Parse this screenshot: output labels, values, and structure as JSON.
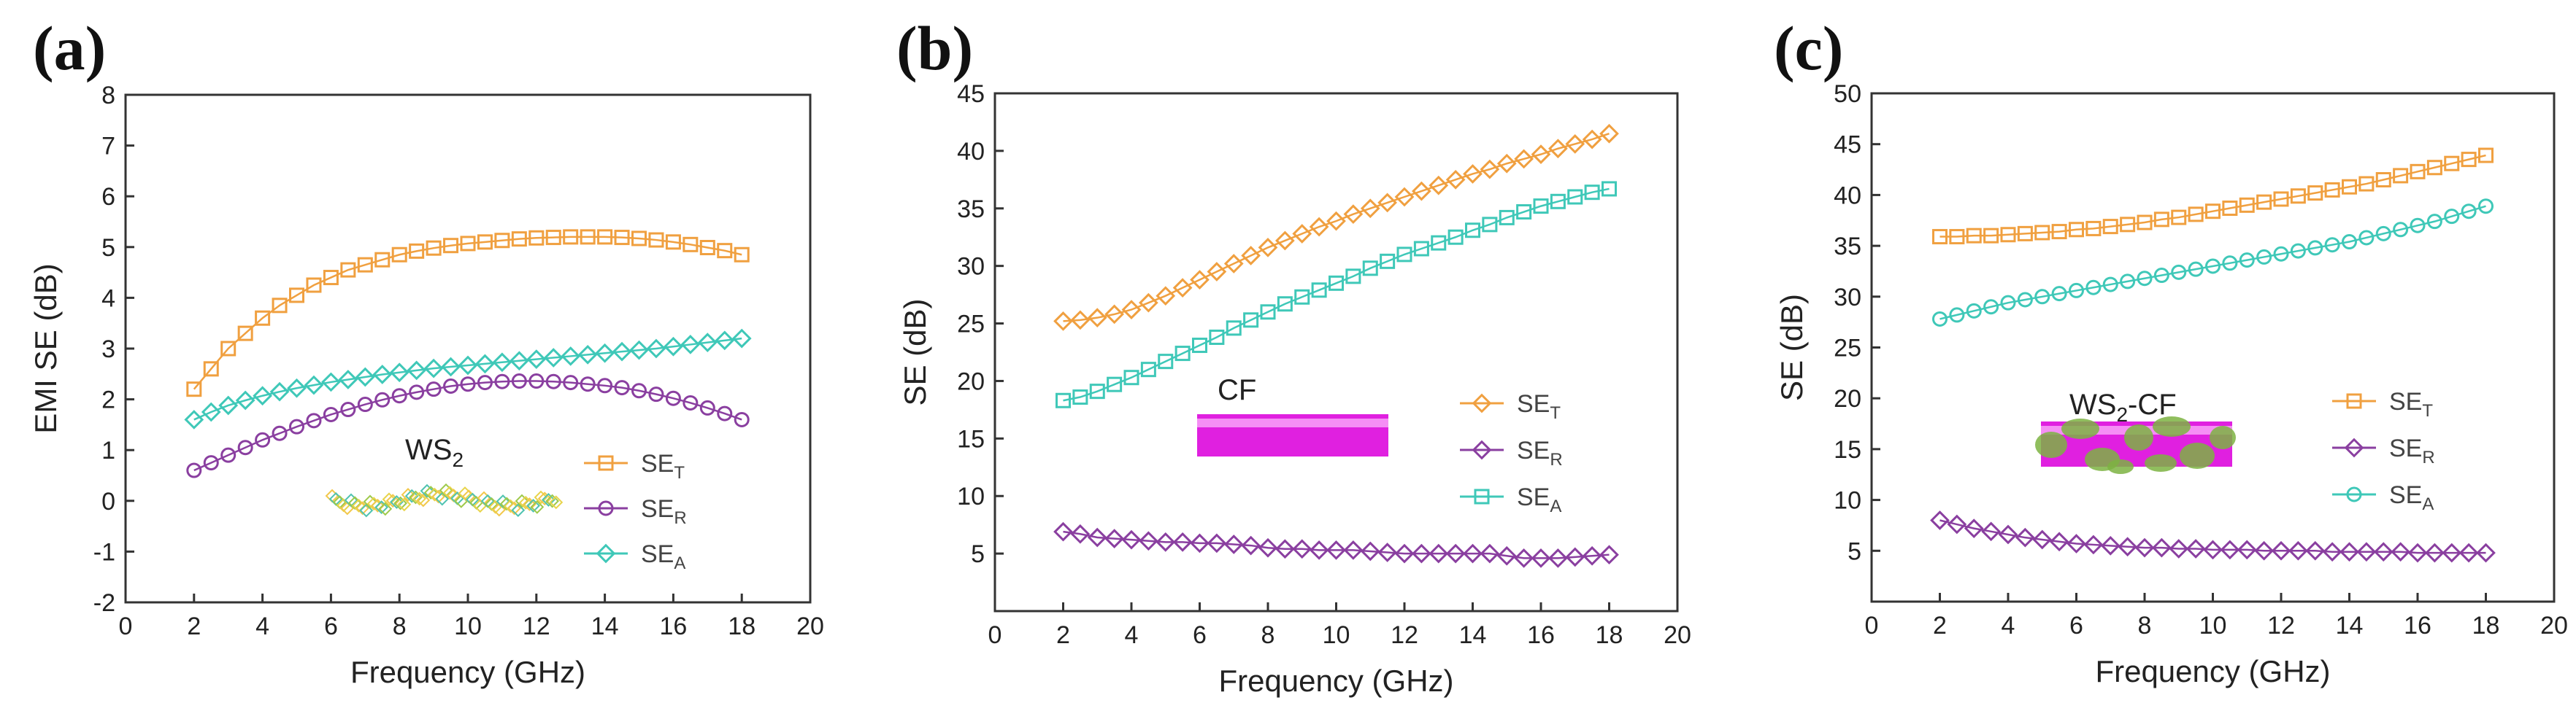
{
  "chart_data": [
    {
      "type": "line",
      "panel_label": "(a)",
      "xlabel": "Frequency (GHz)",
      "ylabel": "EMI SE (dB)",
      "xlim": [
        0,
        20
      ],
      "ylim": [
        -2,
        8
      ],
      "xticks": [
        0,
        2,
        4,
        6,
        8,
        10,
        12,
        14,
        16,
        18,
        20
      ],
      "yticks": [
        -2,
        -1,
        0,
        1,
        2,
        3,
        4,
        5,
        6,
        7,
        8
      ],
      "inset_label": "WS",
      "inset_label_sub": "2",
      "legend_position": "right",
      "series": [
        {
          "name": "SE",
          "sub": "T",
          "color": "#f0a040",
          "marker": "square",
          "x": [
            2,
            2.5,
            3,
            3.5,
            4,
            4.5,
            5,
            5.5,
            6,
            6.5,
            7,
            7.5,
            8,
            8.5,
            9,
            9.5,
            10,
            10.5,
            11,
            11.5,
            12,
            12.5,
            13,
            13.5,
            14,
            14.5,
            15,
            15.5,
            16,
            16.5,
            17,
            17.5,
            18
          ],
          "y": [
            2.2,
            2.6,
            3.0,
            3.3,
            3.6,
            3.85,
            4.05,
            4.25,
            4.4,
            4.55,
            4.65,
            4.75,
            4.85,
            4.92,
            4.98,
            5.03,
            5.07,
            5.1,
            5.13,
            5.16,
            5.18,
            5.19,
            5.2,
            5.2,
            5.2,
            5.19,
            5.17,
            5.14,
            5.1,
            5.05,
            4.99,
            4.93,
            4.85
          ]
        },
        {
          "name": "SE",
          "sub": "R",
          "color": "#8a3fa0",
          "marker": "circle",
          "x": [
            2,
            2.5,
            3,
            3.5,
            4,
            4.5,
            5,
            5.5,
            6,
            6.5,
            7,
            7.5,
            8,
            8.5,
            9,
            9.5,
            10,
            10.5,
            11,
            11.5,
            12,
            12.5,
            13,
            13.5,
            14,
            14.5,
            15,
            15.5,
            16,
            16.5,
            17,
            17.5,
            18
          ],
          "y": [
            0.6,
            0.75,
            0.9,
            1.05,
            1.2,
            1.33,
            1.46,
            1.58,
            1.7,
            1.8,
            1.9,
            1.99,
            2.07,
            2.14,
            2.2,
            2.26,
            2.3,
            2.33,
            2.35,
            2.36,
            2.36,
            2.35,
            2.33,
            2.3,
            2.27,
            2.23,
            2.17,
            2.1,
            2.02,
            1.93,
            1.83,
            1.72,
            1.6
          ]
        },
        {
          "name": "SE",
          "sub": "A",
          "color": "#3fc8b8",
          "marker": "diamond",
          "x": [
            2,
            2.5,
            3,
            3.5,
            4,
            4.5,
            5,
            5.5,
            6,
            6.5,
            7,
            7.5,
            8,
            8.5,
            9,
            9.5,
            10,
            10.5,
            11,
            11.5,
            12,
            12.5,
            13,
            13.5,
            14,
            14.5,
            15,
            15.5,
            16,
            16.5,
            17,
            17.5,
            18
          ],
          "y": [
            1.6,
            1.75,
            1.88,
            1.98,
            2.07,
            2.15,
            2.22,
            2.28,
            2.34,
            2.39,
            2.44,
            2.49,
            2.53,
            2.57,
            2.61,
            2.64,
            2.67,
            2.7,
            2.73,
            2.76,
            2.79,
            2.82,
            2.85,
            2.88,
            2.91,
            2.94,
            2.97,
            3.0,
            3.04,
            3.08,
            3.12,
            3.16,
            3.2
          ]
        }
      ]
    },
    {
      "type": "line",
      "panel_label": "(b)",
      "xlabel": "Frequency (GHz)",
      "ylabel": "SE (dB)",
      "xlim": [
        0,
        20
      ],
      "ylim": [
        0,
        45
      ],
      "xticks": [
        0,
        2,
        4,
        6,
        8,
        10,
        12,
        14,
        16,
        18,
        20
      ],
      "yticks": [
        5,
        10,
        15,
        20,
        25,
        30,
        35,
        40,
        45
      ],
      "inset_label": "CF",
      "inset_label_sub": "",
      "legend_position": "right",
      "series": [
        {
          "name": "SE",
          "sub": "T",
          "color": "#f0a040",
          "marker": "diamond",
          "x": [
            2,
            2.5,
            3,
            3.5,
            4,
            4.5,
            5,
            5.5,
            6,
            6.5,
            7,
            7.5,
            8,
            8.5,
            9,
            9.5,
            10,
            10.5,
            11,
            11.5,
            12,
            12.5,
            13,
            13.5,
            14,
            14.5,
            15,
            15.5,
            16,
            16.5,
            17,
            17.5,
            18
          ],
          "y": [
            25.2,
            25.3,
            25.5,
            25.8,
            26.2,
            26.8,
            27.4,
            28.1,
            28.8,
            29.5,
            30.2,
            30.9,
            31.6,
            32.2,
            32.8,
            33.4,
            33.9,
            34.5,
            35.0,
            35.5,
            36.0,
            36.5,
            37.0,
            37.5,
            38.0,
            38.4,
            38.9,
            39.3,
            39.7,
            40.2,
            40.6,
            41.0,
            41.5
          ]
        },
        {
          "name": "SE",
          "sub": "R",
          "color": "#8a3fa0",
          "marker": "diamond",
          "x": [
            2,
            2.5,
            3,
            3.5,
            4,
            4.5,
            5,
            5.5,
            6,
            6.5,
            7,
            7.5,
            8,
            8.5,
            9,
            9.5,
            10,
            10.5,
            11,
            11.5,
            12,
            12.5,
            13,
            13.5,
            14,
            14.5,
            15,
            15.5,
            16,
            16.5,
            17,
            17.5,
            18
          ],
          "y": [
            6.9,
            6.7,
            6.4,
            6.3,
            6.2,
            6.1,
            6.0,
            6.0,
            5.9,
            5.9,
            5.8,
            5.7,
            5.5,
            5.4,
            5.4,
            5.3,
            5.3,
            5.3,
            5.2,
            5.1,
            5.0,
            5.0,
            5.0,
            5.0,
            5.0,
            5.0,
            4.8,
            4.6,
            4.6,
            4.6,
            4.7,
            4.8,
            4.9
          ]
        },
        {
          "name": "SE",
          "sub": "A",
          "color": "#3fc8b8",
          "marker": "square",
          "x": [
            2,
            2.5,
            3,
            3.5,
            4,
            4.5,
            5,
            5.5,
            6,
            6.5,
            7,
            7.5,
            8,
            8.5,
            9,
            9.5,
            10,
            10.5,
            11,
            11.5,
            12,
            12.5,
            13,
            13.5,
            14,
            14.5,
            15,
            15.5,
            16,
            16.5,
            17,
            17.5,
            18
          ],
          "y": [
            18.3,
            18.6,
            19.1,
            19.7,
            20.3,
            21.0,
            21.7,
            22.4,
            23.1,
            23.8,
            24.6,
            25.3,
            26.0,
            26.7,
            27.3,
            27.9,
            28.5,
            29.1,
            29.8,
            30.4,
            31.0,
            31.5,
            32.0,
            32.5,
            33.1,
            33.6,
            34.2,
            34.7,
            35.2,
            35.6,
            36.0,
            36.4,
            36.7
          ]
        }
      ]
    },
    {
      "type": "line",
      "panel_label": "(c)",
      "xlabel": "Frequency (GHz)",
      "ylabel": "SE (dB)",
      "xlim": [
        0,
        20
      ],
      "ylim": [
        0,
        50
      ],
      "xticks": [
        0,
        2,
        4,
        6,
        8,
        10,
        12,
        14,
        16,
        18,
        20
      ],
      "yticks": [
        5,
        10,
        15,
        20,
        25,
        30,
        35,
        40,
        45,
        50
      ],
      "inset_label": "WS",
      "inset_label_sub": "2",
      "inset_label_suffix": "-CF",
      "legend_position": "right",
      "series": [
        {
          "name": "SE",
          "sub": "T",
          "color": "#f0a040",
          "marker": "square",
          "x": [
            2,
            2.5,
            3,
            3.5,
            4,
            4.5,
            5,
            5.5,
            6,
            6.5,
            7,
            7.5,
            8,
            8.5,
            9,
            9.5,
            10,
            10.5,
            11,
            11.5,
            12,
            12.5,
            13,
            13.5,
            14,
            14.5,
            15,
            15.5,
            16,
            16.5,
            17,
            17.5,
            18
          ],
          "y": [
            35.9,
            35.9,
            36.0,
            36.0,
            36.1,
            36.2,
            36.3,
            36.4,
            36.6,
            36.7,
            36.9,
            37.1,
            37.3,
            37.6,
            37.8,
            38.1,
            38.4,
            38.7,
            39.0,
            39.3,
            39.6,
            39.9,
            40.2,
            40.5,
            40.8,
            41.1,
            41.5,
            41.9,
            42.3,
            42.7,
            43.1,
            43.5,
            43.9
          ]
        },
        {
          "name": "SE",
          "sub": "R",
          "color": "#8a3fa0",
          "marker": "diamond",
          "x": [
            2,
            2.5,
            3,
            3.5,
            4,
            4.5,
            5,
            5.5,
            6,
            6.5,
            7,
            7.5,
            8,
            8.5,
            9,
            9.5,
            10,
            10.5,
            11,
            11.5,
            12,
            12.5,
            13,
            13.5,
            14,
            14.5,
            15,
            15.5,
            16,
            16.5,
            17,
            17.5,
            18
          ],
          "y": [
            8.0,
            7.6,
            7.2,
            6.9,
            6.6,
            6.3,
            6.1,
            5.9,
            5.7,
            5.6,
            5.5,
            5.4,
            5.3,
            5.3,
            5.2,
            5.2,
            5.1,
            5.1,
            5.1,
            5.0,
            5.0,
            5.0,
            5.0,
            4.9,
            4.9,
            4.9,
            4.9,
            4.9,
            4.8,
            4.8,
            4.8,
            4.8,
            4.8
          ]
        },
        {
          "name": "SE",
          "sub": "A",
          "color": "#3fc8b8",
          "marker": "circle",
          "x": [
            2,
            2.5,
            3,
            3.5,
            4,
            4.5,
            5,
            5.5,
            6,
            6.5,
            7,
            7.5,
            8,
            8.5,
            9,
            9.5,
            10,
            10.5,
            11,
            11.5,
            12,
            12.5,
            13,
            13.5,
            14,
            14.5,
            15,
            15.5,
            16,
            16.5,
            17,
            17.5,
            18
          ],
          "y": [
            27.8,
            28.2,
            28.6,
            29.0,
            29.4,
            29.7,
            30.0,
            30.3,
            30.6,
            30.9,
            31.2,
            31.5,
            31.8,
            32.1,
            32.4,
            32.7,
            33.0,
            33.3,
            33.6,
            33.9,
            34.2,
            34.5,
            34.8,
            35.1,
            35.4,
            35.8,
            36.2,
            36.6,
            37.0,
            37.4,
            37.9,
            38.4,
            38.9
          ]
        }
      ]
    }
  ]
}
